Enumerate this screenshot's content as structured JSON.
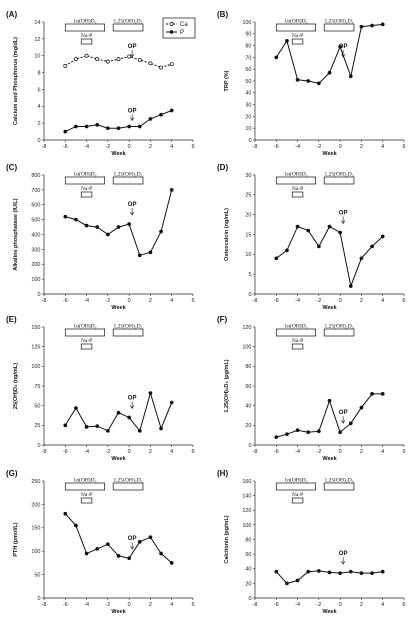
{
  "figure": {
    "xlabel": "Week",
    "xticks": [
      -8,
      -6,
      -4,
      -2,
      0,
      2,
      4,
      6
    ],
    "treatment_1_label": "1α(OH)D₃",
    "treatment_2_label": "1,25(OH)₂D₃",
    "phosphate_label": "Na-P",
    "op_label": "OP"
  },
  "chart_data": [
    {
      "type": "line",
      "panel": "(A)",
      "ylabel": "Calcium and Phosphorus (mg/dL)",
      "xlabel": "Week",
      "xlim": [
        -8,
        6
      ],
      "ylim": [
        0,
        14
      ],
      "yticks": [
        0,
        2,
        4,
        6,
        8,
        10,
        12,
        14
      ],
      "legend": {
        "position": "top-right",
        "entries": [
          "Ca",
          "P"
        ]
      },
      "annotations": [
        "1α(OH)D₃",
        "1,25(OH)₂D₃",
        "Na-P",
        "OP"
      ],
      "series": [
        {
          "name": "Ca",
          "style": "open-dashed",
          "x": [
            -6,
            -5,
            -4,
            -3,
            -2,
            -1,
            0,
            1,
            2,
            3,
            4
          ],
          "y": [
            8.8,
            9.6,
            10.0,
            9.6,
            9.3,
            9.6,
            9.9,
            9.5,
            9.1,
            8.6,
            9.0
          ]
        },
        {
          "name": "P",
          "style": "filled-solid",
          "x": [
            -6,
            -5,
            -4,
            -3,
            -2,
            -1,
            0,
            1,
            2,
            3,
            4
          ],
          "y": [
            1.0,
            1.6,
            1.6,
            1.8,
            1.4,
            1.4,
            1.6,
            1.6,
            2.5,
            3.0,
            3.5
          ]
        }
      ]
    },
    {
      "type": "line",
      "panel": "(B)",
      "ylabel": "TRP (%)",
      "xlabel": "Week",
      "xlim": [
        -8,
        6
      ],
      "ylim": [
        0,
        100
      ],
      "yticks": [
        0,
        10,
        20,
        30,
        40,
        50,
        60,
        70,
        80,
        90,
        100
      ],
      "annotations": [
        "1α(OH)D₃",
        "1,25(OH)₂D₃",
        "Na-P",
        "OP"
      ],
      "series": [
        {
          "x": [
            -6,
            -5,
            -4,
            -3,
            -2,
            -1,
            0,
            1,
            2,
            3,
            4
          ],
          "y": [
            70,
            84,
            51,
            50,
            48,
            57,
            79,
            54,
            96,
            97,
            98
          ]
        }
      ]
    },
    {
      "type": "line",
      "panel": "(C)",
      "ylabel": "Alkaline phosphatase (IU/L)",
      "xlabel": "Week",
      "xlim": [
        -8,
        6
      ],
      "ylim": [
        0,
        800
      ],
      "yticks": [
        0,
        100,
        200,
        300,
        400,
        500,
        600,
        700,
        800
      ],
      "annotations": [
        "1α(OH)D₃",
        "1,25(OH)₂D₃",
        "Na-P",
        "OP"
      ],
      "series": [
        {
          "x": [
            -6,
            -5,
            -4,
            -3,
            -2,
            -1,
            0,
            1,
            2,
            3,
            4
          ],
          "y": [
            520,
            500,
            460,
            450,
            400,
            450,
            470,
            260,
            280,
            420,
            700
          ]
        }
      ]
    },
    {
      "type": "line",
      "panel": "(D)",
      "ylabel": "Osteocalcin (ng/mL)",
      "xlabel": "Week",
      "xlim": [
        -8,
        6
      ],
      "ylim": [
        0,
        30
      ],
      "yticks": [
        0,
        5,
        10,
        15,
        20,
        25,
        30
      ],
      "annotations": [
        "1α(OH)D₃",
        "1,25(OH)₂D₃",
        "Na-P",
        "OP"
      ],
      "series": [
        {
          "x": [
            -6,
            -5,
            -4,
            -3,
            -2,
            -1,
            0,
            1,
            2,
            3,
            4
          ],
          "y": [
            9,
            11,
            17,
            16,
            12,
            17,
            15.5,
            2,
            9,
            12,
            14.5
          ]
        }
      ]
    },
    {
      "type": "line",
      "panel": "(E)",
      "ylabel": "25(OH)D₃ (ng/mL)",
      "xlabel": "Week",
      "xlim": [
        -8,
        6
      ],
      "ylim": [
        0,
        150
      ],
      "yticks": [
        0,
        25,
        50,
        75,
        100,
        125,
        150
      ],
      "annotations": [
        "1α(OH)D₃",
        "1,25(OH)₂D₃",
        "Na-P",
        "OP"
      ],
      "series": [
        {
          "x": [
            -6,
            -5,
            -4,
            -3,
            -2,
            -1,
            0,
            1,
            2,
            3,
            4
          ],
          "y": [
            25,
            47,
            23,
            24,
            18,
            41,
            35,
            18,
            66,
            21,
            54
          ]
        }
      ]
    },
    {
      "type": "line",
      "panel": "(F)",
      "ylabel": "1,25(OH)₂D₃ (pg/mL)",
      "xlabel": "Week",
      "xlim": [
        -8,
        6
      ],
      "ylim": [
        0,
        120
      ],
      "yticks": [
        0,
        20,
        40,
        60,
        80,
        100,
        120
      ],
      "annotations": [
        "1α(OH)D₃",
        "1,25(OH)₂D₃",
        "Na-P",
        "OP"
      ],
      "series": [
        {
          "x": [
            -6,
            -5,
            -4,
            -3,
            -2,
            -1,
            0,
            1,
            2,
            3,
            4
          ],
          "y": [
            8,
            11,
            15,
            13,
            14,
            45,
            13,
            22,
            38,
            52,
            52
          ]
        }
      ]
    },
    {
      "type": "line",
      "panel": "(G)",
      "ylabel": "PTH (pmol/L)",
      "xlabel": "Week",
      "xlim": [
        -8,
        6
      ],
      "ylim": [
        0,
        250
      ],
      "yticks": [
        0,
        50,
        100,
        150,
        200,
        250
      ],
      "annotations": [
        "1α(OH)D₃",
        "1,25(OH)₂D₃",
        "Na-P",
        "OP"
      ],
      "series": [
        {
          "x": [
            -6,
            -5,
            -4,
            -3,
            -2,
            -1,
            0,
            1,
            2,
            3,
            4
          ],
          "y": [
            180,
            155,
            95,
            105,
            115,
            90,
            85,
            120,
            130,
            95,
            75
          ]
        }
      ]
    },
    {
      "type": "line",
      "panel": "(H)",
      "ylabel": "Calcitonin (pg/mL)",
      "xlabel": "Week",
      "xlim": [
        -8,
        6
      ],
      "ylim": [
        0,
        160
      ],
      "yticks": [
        0,
        20,
        40,
        60,
        80,
        100,
        120,
        140,
        160
      ],
      "annotations": [
        "1α(OH)D₃",
        "1,25(OH)₂D₃",
        "Na-P",
        "OP"
      ],
      "series": [
        {
          "x": [
            -6,
            -5,
            -4,
            -3,
            -2,
            -1,
            0,
            1,
            2,
            3,
            4
          ],
          "y": [
            36,
            20,
            24,
            36,
            37,
            35,
            34,
            36,
            34,
            34,
            36
          ]
        }
      ]
    }
  ]
}
